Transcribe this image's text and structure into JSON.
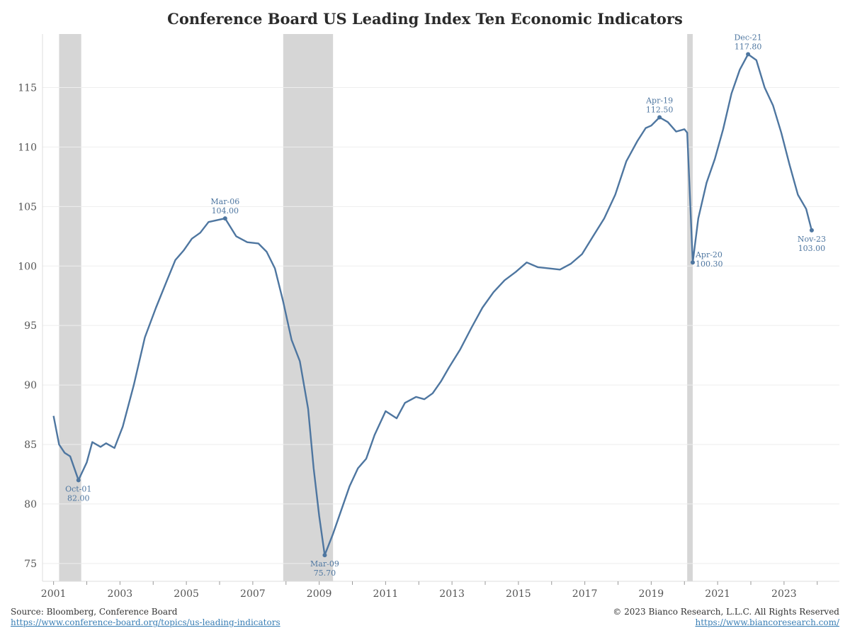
{
  "title": "Conference Board US Leading Index Ten Economic Indicators",
  "footer": {
    "source": "Source: Bloomberg, Conference Board",
    "source_url": "https://www.conference-board.org/topics/us-leading-indicators",
    "copyright": "© 2023 Bianco Research, L.L.C. All Rights Reserved",
    "site_url": "https://www.biancoresearch.com/"
  },
  "colors": {
    "line": "#4e76a0",
    "recession": "#d6d6d6",
    "grid": "#eeeeee",
    "tick_text": "#555555"
  },
  "chart_data": {
    "type": "line",
    "title": "Conference Board US Leading Index Ten Economic Indicators",
    "xlabel": "",
    "ylabel": "",
    "x_ticks": [
      "2001",
      "2003",
      "2005",
      "2007",
      "2009",
      "2011",
      "2013",
      "2015",
      "2017",
      "2019",
      "2021",
      "2023"
    ],
    "y_ticks": [
      75,
      80,
      85,
      90,
      95,
      100,
      105,
      110,
      115
    ],
    "xlim": [
      "2000-09",
      "2024-09"
    ],
    "ylim": [
      73.5,
      119.5
    ],
    "grid": "horizontal",
    "recessions": [
      {
        "start": "2001-03",
        "end": "2001-11"
      },
      {
        "start": "2007-12",
        "end": "2009-06"
      },
      {
        "start": "2020-02",
        "end": "2020-04"
      }
    ],
    "series": [
      {
        "points": [
          [
            "2001-01",
            87.4
          ],
          [
            "2001-03",
            85.0
          ],
          [
            "2001-05",
            84.3
          ],
          [
            "2001-07",
            84.0
          ],
          [
            "2001-10",
            82.0
          ],
          [
            "2002-01",
            83.5
          ],
          [
            "2002-03",
            85.2
          ],
          [
            "2002-06",
            84.8
          ],
          [
            "2002-08",
            85.1
          ],
          [
            "2002-11",
            84.7
          ],
          [
            "2003-02",
            86.5
          ],
          [
            "2003-06",
            90.0
          ],
          [
            "2003-10",
            94.0
          ],
          [
            "2004-02",
            96.5
          ],
          [
            "2004-06",
            98.8
          ],
          [
            "2004-09",
            100.5
          ],
          [
            "2004-12",
            101.3
          ],
          [
            "2005-03",
            102.3
          ],
          [
            "2005-06",
            102.8
          ],
          [
            "2005-09",
            103.7
          ],
          [
            "2006-03",
            104.0
          ],
          [
            "2006-07",
            102.5
          ],
          [
            "2006-11",
            102.0
          ],
          [
            "2007-03",
            101.9
          ],
          [
            "2007-06",
            101.2
          ],
          [
            "2007-09",
            99.8
          ],
          [
            "2007-12",
            97.0
          ],
          [
            "2008-03",
            93.8
          ],
          [
            "2008-06",
            92.0
          ],
          [
            "2008-09",
            88.0
          ],
          [
            "2008-11",
            83.0
          ],
          [
            "2009-01",
            79.0
          ],
          [
            "2009-03",
            75.7
          ],
          [
            "2009-06",
            77.5
          ],
          [
            "2009-09",
            79.5
          ],
          [
            "2009-12",
            81.5
          ],
          [
            "2010-03",
            83.0
          ],
          [
            "2010-06",
            83.8
          ],
          [
            "2010-09",
            85.8
          ],
          [
            "2011-01",
            87.8
          ],
          [
            "2011-05",
            87.2
          ],
          [
            "2011-08",
            88.5
          ],
          [
            "2011-12",
            89.0
          ],
          [
            "2012-03",
            88.8
          ],
          [
            "2012-06",
            89.3
          ],
          [
            "2012-09",
            90.3
          ],
          [
            "2012-12",
            91.5
          ],
          [
            "2013-04",
            93.0
          ],
          [
            "2013-08",
            94.8
          ],
          [
            "2013-12",
            96.5
          ],
          [
            "2014-04",
            97.8
          ],
          [
            "2014-08",
            98.8
          ],
          [
            "2014-12",
            99.5
          ],
          [
            "2015-04",
            100.3
          ],
          [
            "2015-08",
            99.9
          ],
          [
            "2015-12",
            99.8
          ],
          [
            "2016-04",
            99.7
          ],
          [
            "2016-08",
            100.2
          ],
          [
            "2016-12",
            101.0
          ],
          [
            "2017-04",
            102.5
          ],
          [
            "2017-08",
            104.0
          ],
          [
            "2017-12",
            106.0
          ],
          [
            "2018-04",
            108.8
          ],
          [
            "2018-08",
            110.5
          ],
          [
            "2018-11",
            111.6
          ],
          [
            "2019-01",
            111.8
          ],
          [
            "2019-04",
            112.5
          ],
          [
            "2019-07",
            112.1
          ],
          [
            "2019-10",
            111.3
          ],
          [
            "2020-01",
            111.5
          ],
          [
            "2020-02",
            111.2
          ],
          [
            "2020-04",
            100.3
          ],
          [
            "2020-06",
            104.0
          ],
          [
            "2020-09",
            107.0
          ],
          [
            "2020-12",
            109.0
          ],
          [
            "2021-03",
            111.5
          ],
          [
            "2021-06",
            114.5
          ],
          [
            "2021-09",
            116.5
          ],
          [
            "2021-12",
            117.8
          ],
          [
            "2022-03",
            117.3
          ],
          [
            "2022-06",
            115.0
          ],
          [
            "2022-09",
            113.5
          ],
          [
            "2022-12",
            111.2
          ],
          [
            "2023-03",
            108.5
          ],
          [
            "2023-06",
            106.0
          ],
          [
            "2023-09",
            104.8
          ],
          [
            "2023-11",
            103.0
          ]
        ]
      }
    ],
    "annotations": [
      {
        "x": "2001-10",
        "y": 82.0,
        "label": "Oct-01",
        "value": "82.00",
        "placement": "below"
      },
      {
        "x": "2006-03",
        "y": 104.0,
        "label": "Mar-06",
        "value": "104.00",
        "placement": "above"
      },
      {
        "x": "2009-03",
        "y": 75.7,
        "label": "Mar-09",
        "value": "75.70",
        "placement": "below"
      },
      {
        "x": "2019-04",
        "y": 112.5,
        "label": "Apr-19",
        "value": "112.50",
        "placement": "above"
      },
      {
        "x": "2020-04",
        "y": 100.3,
        "label": "Apr-20",
        "value": "100.30",
        "placement": "right"
      },
      {
        "x": "2021-12",
        "y": 117.8,
        "label": "Dec-21",
        "value": "117.80",
        "placement": "above"
      },
      {
        "x": "2023-11",
        "y": 103.0,
        "label": "Nov-23",
        "value": "103.00",
        "placement": "below"
      }
    ]
  }
}
